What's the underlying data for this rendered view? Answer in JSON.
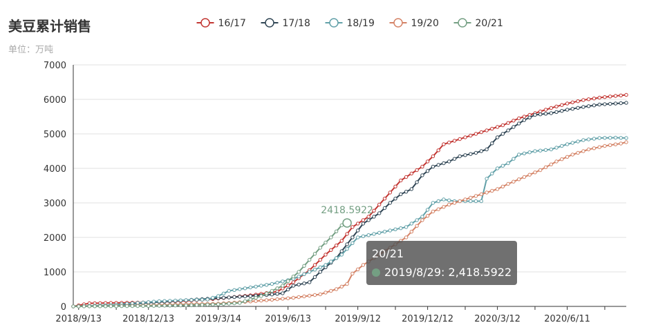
{
  "title": "美豆累计销售",
  "subtitle": "单位：万吨",
  "tooltip": {
    "series": "20/21",
    "row": "2019/8/29: 2,418.5922",
    "color": "#749f83"
  },
  "chart_data": {
    "type": "line",
    "title": "美豆累计销售",
    "ylabel": "单位：万吨",
    "ylim": [
      0,
      7000
    ],
    "yticks": [
      0,
      1000,
      2000,
      3000,
      4000,
      5000,
      6000,
      7000
    ],
    "x_range": [
      "2018/9/6",
      "2020/8/27"
    ],
    "x_ticks": [
      "2018/9/13",
      "2018/12/13",
      "2019/3/14",
      "2019/6/13",
      "2019/9/12",
      "2019/12/12",
      "2020/3/12",
      "2020/6/11"
    ],
    "legend_position": "top-center",
    "grid": true,
    "highlight": {
      "series": "20/21",
      "x": "2019/8/29",
      "y": 2418.5922,
      "label": "2418.5922"
    },
    "series": [
      {
        "name": "16/17",
        "color": "#c23531",
        "points": [
          [
            "2018/9/6",
            0
          ],
          [
            "2018/9/27",
            90
          ],
          [
            "2018/10/25",
            100
          ],
          [
            "2018/11/29",
            110
          ],
          [
            "2018/12/27",
            130
          ],
          [
            "2019/1/31",
            160
          ],
          [
            "2019/2/28",
            200
          ],
          [
            "2019/3/28",
            260
          ],
          [
            "2019/4/25",
            320
          ],
          [
            "2019/5/30",
            430
          ],
          [
            "2019/6/20",
            700
          ],
          [
            "2019/7/11",
            1050
          ],
          [
            "2019/8/1",
            1500
          ],
          [
            "2019/8/22",
            1900
          ],
          [
            "2019/9/5",
            2300
          ],
          [
            "2019/9/26",
            2600
          ],
          [
            "2019/10/10",
            2950
          ],
          [
            "2019/10/24",
            3300
          ],
          [
            "2019/11/7",
            3650
          ],
          [
            "2019/11/21",
            3850
          ],
          [
            "2019/12/5",
            4050
          ],
          [
            "2019/12/19",
            4350
          ],
          [
            "2020/1/2",
            4700
          ],
          [
            "2020/1/16",
            4800
          ],
          [
            "2020/1/30",
            4900
          ],
          [
            "2020/2/13",
            5000
          ],
          [
            "2020/2/27",
            5100
          ],
          [
            "2020/3/19",
            5250
          ],
          [
            "2020/4/9",
            5450
          ],
          [
            "2020/4/30",
            5600
          ],
          [
            "2020/5/21",
            5750
          ],
          [
            "2020/6/11",
            5880
          ],
          [
            "2020/7/2",
            5980
          ],
          [
            "2020/7/23",
            6050
          ],
          [
            "2020/8/13",
            6100
          ],
          [
            "2020/8/27",
            6130
          ]
        ]
      },
      {
        "name": "17/18",
        "color": "#2f4554",
        "points": [
          [
            "2018/9/6",
            0
          ],
          [
            "2018/10/25",
            30
          ],
          [
            "2018/11/29",
            80
          ],
          [
            "2018/12/27",
            130
          ],
          [
            "2019/1/31",
            180
          ],
          [
            "2019/2/28",
            220
          ],
          [
            "2019/3/28",
            260
          ],
          [
            "2019/4/25",
            300
          ],
          [
            "2019/5/16",
            330
          ],
          [
            "2019/6/6",
            380
          ],
          [
            "2019/6/20",
            600
          ],
          [
            "2019/7/11",
            700
          ],
          [
            "2019/7/25",
            1000
          ],
          [
            "2019/8/15",
            1400
          ],
          [
            "2019/9/5",
            2000
          ],
          [
            "2019/9/19",
            2400
          ],
          [
            "2019/10/10",
            2700
          ],
          [
            "2019/10/24",
            3000
          ],
          [
            "2019/11/7",
            3250
          ],
          [
            "2019/11/21",
            3400
          ],
          [
            "2019/12/5",
            3800
          ],
          [
            "2019/12/19",
            4050
          ],
          [
            "2020/1/9",
            4200
          ],
          [
            "2020/1/23",
            4350
          ],
          [
            "2020/2/13",
            4450
          ],
          [
            "2020/2/27",
            4550
          ],
          [
            "2020/3/12",
            4900
          ],
          [
            "2020/3/26",
            5100
          ],
          [
            "2020/4/16",
            5400
          ],
          [
            "2020/4/30",
            5550
          ],
          [
            "2020/5/21",
            5600
          ],
          [
            "2020/6/11",
            5700
          ],
          [
            "2020/7/2",
            5780
          ],
          [
            "2020/7/23",
            5850
          ],
          [
            "2020/8/13",
            5880
          ],
          [
            "2020/8/27",
            5900
          ]
        ]
      },
      {
        "name": "18/19",
        "color": "#61a0a8",
        "points": [
          [
            "2018/9/6",
            0
          ],
          [
            "2018/10/25",
            40
          ],
          [
            "2018/11/29",
            100
          ],
          [
            "2018/12/27",
            150
          ],
          [
            "2019/1/31",
            180
          ],
          [
            "2019/2/28",
            200
          ],
          [
            "2019/3/14",
            300
          ],
          [
            "2019/3/28",
            450
          ],
          [
            "2019/4/25",
            550
          ],
          [
            "2019/5/23",
            650
          ],
          [
            "2019/6/20",
            800
          ],
          [
            "2019/7/11",
            1000
          ],
          [
            "2019/8/1",
            1200
          ],
          [
            "2019/8/22",
            1500
          ],
          [
            "2019/9/12",
            2000
          ],
          [
            "2019/10/3",
            2100
          ],
          [
            "2019/10/24",
            2200
          ],
          [
            "2019/11/14",
            2300
          ],
          [
            "2019/12/5",
            2600
          ],
          [
            "2019/12/19",
            3000
          ],
          [
            "2020/1/2",
            3100
          ],
          [
            "2020/1/16",
            3050
          ],
          [
            "2020/1/30",
            3050
          ],
          [
            "2020/2/13",
            3050
          ],
          [
            "2020/2/20",
            3050
          ],
          [
            "2020/2/27",
            3700
          ],
          [
            "2020/3/12",
            4000
          ],
          [
            "2020/3/26",
            4150
          ],
          [
            "2020/4/9",
            4400
          ],
          [
            "2020/4/30",
            4500
          ],
          [
            "2020/5/21",
            4550
          ],
          [
            "2020/6/11",
            4700
          ],
          [
            "2020/7/2",
            4820
          ],
          [
            "2020/7/23",
            4880
          ],
          [
            "2020/8/13",
            4890
          ],
          [
            "2020/8/27",
            4880
          ]
        ]
      },
      {
        "name": "19/20",
        "color": "#d48265",
        "points": [
          [
            "2018/9/6",
            0
          ],
          [
            "2018/11/29",
            20
          ],
          [
            "2019/1/31",
            60
          ],
          [
            "2019/3/14",
            80
          ],
          [
            "2019/4/11",
            120
          ],
          [
            "2019/5/16",
            180
          ],
          [
            "2019/6/20",
            250
          ],
          [
            "2019/7/25",
            350
          ],
          [
            "2019/8/15",
            500
          ],
          [
            "2019/8/29",
            650
          ],
          [
            "2019/9/5",
            950
          ],
          [
            "2019/9/19",
            1200
          ],
          [
            "2019/10/10",
            1500
          ],
          [
            "2019/10/24",
            1700
          ],
          [
            "2019/11/14",
            2000
          ],
          [
            "2019/12/5",
            2500
          ],
          [
            "2019/12/19",
            2750
          ],
          [
            "2020/1/9",
            2950
          ],
          [
            "2020/1/30",
            3100
          ],
          [
            "2020/2/20",
            3250
          ],
          [
            "2020/3/12",
            3400
          ],
          [
            "2020/3/26",
            3550
          ],
          [
            "2020/4/16",
            3750
          ],
          [
            "2020/5/7",
            3950
          ],
          [
            "2020/5/28",
            4200
          ],
          [
            "2020/6/18",
            4400
          ],
          [
            "2020/7/9",
            4550
          ],
          [
            "2020/7/30",
            4650
          ],
          [
            "2020/8/20",
            4720
          ],
          [
            "2020/8/27",
            4760
          ]
        ]
      },
      {
        "name": "20/21",
        "color": "#749f83",
        "points": [
          [
            "2018/9/6",
            0
          ],
          [
            "2018/11/29",
            10
          ],
          [
            "2019/1/31",
            30
          ],
          [
            "2019/3/14",
            60
          ],
          [
            "2019/4/11",
            100
          ],
          [
            "2019/5/9",
            300
          ],
          [
            "2019/6/6",
            600
          ],
          [
            "2019/6/27",
            1000
          ],
          [
            "2019/7/11",
            1350
          ],
          [
            "2019/7/25",
            1700
          ],
          [
            "2019/8/8",
            2000
          ],
          [
            "2019/8/22",
            2350
          ],
          [
            "2019/8/29",
            2418.5922
          ]
        ]
      }
    ]
  }
}
